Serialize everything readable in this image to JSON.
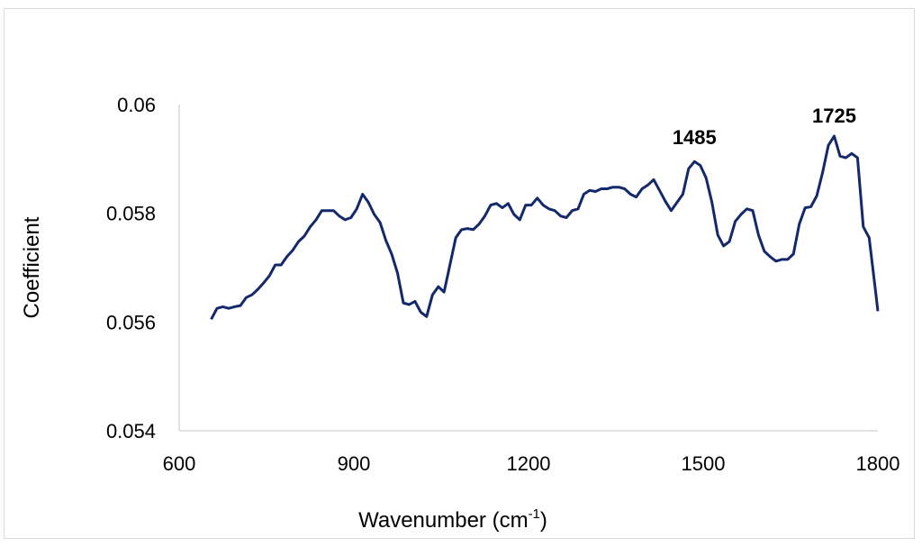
{
  "chart_data": {
    "type": "line",
    "title": "",
    "xlabel": "Wavenumber (cm",
    "xlabel_superscript": "-1",
    "xlabel_suffix": ")",
    "ylabel": "Coefficient",
    "xlim": [
      600,
      1800
    ],
    "ylim": [
      0.054,
      0.06
    ],
    "xticks": [
      "600",
      "900",
      "1200",
      "1500",
      "1800"
    ],
    "yticks": [
      "0.054",
      "0.056",
      "0.058",
      "0.06"
    ],
    "grid": false,
    "legend": "none",
    "line_color": "#13296b",
    "annotations": [
      {
        "text": "1485",
        "x": 1485,
        "y": 0.0594
      },
      {
        "text": "1725",
        "x": 1725,
        "y": 0.0598
      }
    ],
    "series": [
      {
        "x": [
          655,
          665,
          675,
          685,
          695,
          705,
          715,
          725,
          735,
          745,
          755,
          765,
          775,
          785,
          795,
          805,
          815,
          825,
          835,
          845,
          855,
          865,
          875,
          885,
          895,
          905,
          915,
          925,
          935,
          945,
          955,
          965,
          975,
          985,
          995,
          1005,
          1015,
          1025,
          1035,
          1045,
          1055,
          1065,
          1075,
          1085,
          1095,
          1105,
          1115,
          1125,
          1135,
          1145,
          1155,
          1165,
          1175,
          1185,
          1195,
          1205,
          1215,
          1225,
          1235,
          1245,
          1255,
          1265,
          1275,
          1285,
          1295,
          1305,
          1315,
          1325,
          1335,
          1345,
          1355,
          1365,
          1375,
          1385,
          1395,
          1405,
          1415,
          1425,
          1435,
          1445,
          1455,
          1465,
          1475,
          1485,
          1495,
          1505,
          1515,
          1525,
          1535,
          1545,
          1555,
          1565,
          1575,
          1585,
          1595,
          1605,
          1615,
          1625,
          1635,
          1645,
          1655,
          1665,
          1675,
          1685,
          1695,
          1705,
          1715,
          1725,
          1735,
          1745,
          1755,
          1765,
          1775,
          1785,
          1795,
          1800
        ],
        "values": [
          0.05605,
          0.05625,
          0.05628,
          0.05625,
          0.05628,
          0.0563,
          0.05645,
          0.0565,
          0.0566,
          0.05672,
          0.05685,
          0.05705,
          0.05705,
          0.0572,
          0.05732,
          0.05748,
          0.05758,
          0.05775,
          0.05788,
          0.05805,
          0.05805,
          0.05805,
          0.05795,
          0.05788,
          0.05792,
          0.05808,
          0.05835,
          0.0582,
          0.05798,
          0.05783,
          0.0575,
          0.05725,
          0.0569,
          0.05635,
          0.05632,
          0.05638,
          0.05618,
          0.0561,
          0.0565,
          0.05665,
          0.05655,
          0.05705,
          0.05755,
          0.0577,
          0.05772,
          0.0577,
          0.0578,
          0.05795,
          0.05815,
          0.05818,
          0.0581,
          0.05818,
          0.05798,
          0.05788,
          0.05815,
          0.05815,
          0.05828,
          0.05815,
          0.05808,
          0.05805,
          0.05795,
          0.05792,
          0.05805,
          0.05808,
          0.05835,
          0.05842,
          0.0584,
          0.05845,
          0.05845,
          0.05848,
          0.05848,
          0.05845,
          0.05835,
          0.0583,
          0.05845,
          0.05852,
          0.05862,
          0.05842,
          0.05822,
          0.05805,
          0.0582,
          0.05835,
          0.05882,
          0.05895,
          0.05888,
          0.05865,
          0.0582,
          0.0576,
          0.0574,
          0.05748,
          0.05785,
          0.05798,
          0.05808,
          0.05805,
          0.0576,
          0.0573,
          0.0572,
          0.05712,
          0.05715,
          0.05715,
          0.05725,
          0.0578,
          0.0581,
          0.05812,
          0.05832,
          0.05875,
          0.05925,
          0.05942,
          0.05905,
          0.05902,
          0.0591,
          0.05902,
          0.05775,
          0.05755,
          0.05665,
          0.0562
        ]
      }
    ]
  }
}
